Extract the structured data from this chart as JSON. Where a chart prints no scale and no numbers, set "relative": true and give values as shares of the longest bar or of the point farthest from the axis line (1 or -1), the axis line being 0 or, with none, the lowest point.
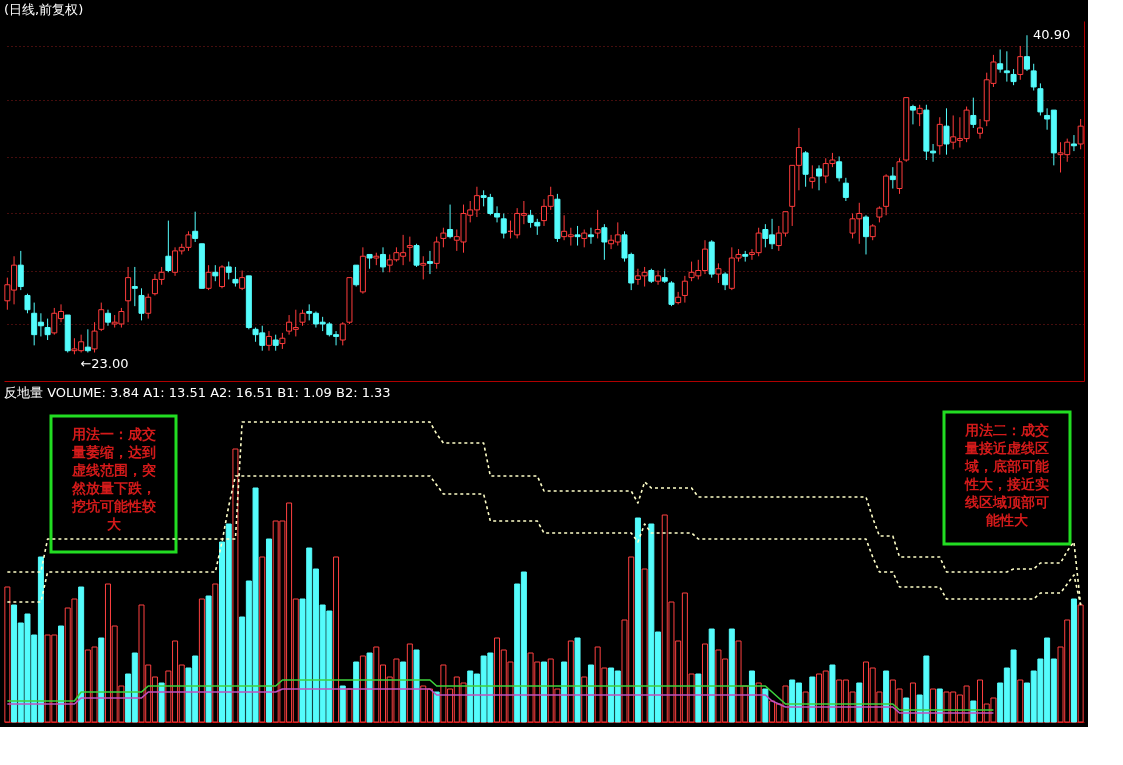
{
  "chart_data": [
    {
      "type": "candlestick",
      "title": "(日线,前复权)",
      "categories": [
        null,
        null,
        null,
        null,
        null,
        null,
        null,
        null,
        null,
        null,
        null,
        null,
        null,
        null,
        null,
        null,
        null,
        null,
        null,
        null,
        null,
        null,
        null,
        null,
        null,
        null,
        null,
        null,
        null,
        null,
        null,
        null,
        null,
        null,
        null,
        null,
        null,
        null,
        null,
        null,
        null,
        null,
        null,
        null,
        null,
        null,
        null,
        null,
        null,
        null,
        null,
        null,
        null,
        null,
        null,
        null,
        null,
        null,
        null,
        null,
        null,
        null,
        null,
        null,
        null,
        null,
        null,
        null,
        null,
        null,
        null,
        null,
        null,
        null,
        null,
        null,
        null,
        null,
        null,
        null,
        null,
        null,
        null,
        null,
        null,
        null,
        null,
        null,
        null,
        null,
        null,
        null,
        null,
        null,
        null,
        null,
        null,
        null,
        null,
        null,
        null,
        null,
        null,
        null,
        null,
        null,
        null,
        null,
        null,
        null,
        null,
        null,
        null,
        null,
        null,
        null,
        null,
        null,
        null,
        null,
        null,
        null,
        null,
        null,
        null,
        null,
        null,
        null,
        null,
        null,
        null,
        null,
        null,
        null,
        null,
        null,
        null,
        null,
        null,
        null,
        null,
        null,
        null,
        null,
        null,
        null,
        null,
        null,
        null,
        null,
        null,
        null,
        null,
        null,
        null,
        null,
        null,
        null,
        null,
        null,
        null
      ],
      "ohlc": [
        [
          26.0,
          27.3,
          25.5,
          26.9
        ],
        [
          26.6,
          28.5,
          25.8,
          28.0
        ],
        [
          28.0,
          28.8,
          26.6,
          26.8
        ],
        [
          26.3,
          26.4,
          25.3,
          25.5
        ],
        [
          25.3,
          25.9,
          23.5,
          24.1
        ],
        [
          24.8,
          25.3,
          24.0,
          24.6
        ],
        [
          24.5,
          25.0,
          23.8,
          24.1
        ],
        [
          24.2,
          25.6,
          24.1,
          25.3
        ],
        [
          25.0,
          25.8,
          24.8,
          25.4
        ],
        [
          25.2,
          25.2,
          23.1,
          23.2
        ],
        [
          23.2,
          23.9,
          23.0,
          23.3
        ],
        [
          23.2,
          24.1,
          23.1,
          23.7
        ],
        [
          23.4,
          24.4,
          23.1,
          23.2
        ],
        [
          23.3,
          24.8,
          23.1,
          24.3
        ],
        [
          24.4,
          25.9,
          24.3,
          25.5
        ],
        [
          25.3,
          25.5,
          24.6,
          24.8
        ],
        [
          24.7,
          25.2,
          24.5,
          24.8
        ],
        [
          24.7,
          25.6,
          24.5,
          25.4
        ],
        [
          26.0,
          27.9,
          24.8,
          27.3
        ],
        [
          26.8,
          27.9,
          25.7,
          26.7
        ],
        [
          26.3,
          26.7,
          24.9,
          25.3
        ],
        [
          25.3,
          26.4,
          25.0,
          26.2
        ],
        [
          26.4,
          27.5,
          26.3,
          27.2
        ],
        [
          27.2,
          27.9,
          26.9,
          27.6
        ],
        [
          28.5,
          30.5,
          27.6,
          27.7
        ],
        [
          27.6,
          29.0,
          27.4,
          28.8
        ],
        [
          28.8,
          29.2,
          28.6,
          29.0
        ],
        [
          29.0,
          29.9,
          28.8,
          29.7
        ],
        [
          29.9,
          31.0,
          29.3,
          29.5
        ],
        [
          29.2,
          29.2,
          26.7,
          26.7
        ],
        [
          26.7,
          28.0,
          26.6,
          27.6
        ],
        [
          27.6,
          28.0,
          27.1,
          27.4
        ],
        [
          26.8,
          28.0,
          26.7,
          27.9
        ],
        [
          27.9,
          28.2,
          27.2,
          27.6
        ],
        [
          27.2,
          27.9,
          26.8,
          27.0
        ],
        [
          26.7,
          27.7,
          26.6,
          27.3
        ],
        [
          27.4,
          27.4,
          24.4,
          24.5
        ],
        [
          24.4,
          24.5,
          23.7,
          24.1
        ],
        [
          24.2,
          24.6,
          23.2,
          23.5
        ],
        [
          23.5,
          24.3,
          23.2,
          24.0
        ],
        [
          23.8,
          24.1,
          23.2,
          23.5
        ],
        [
          23.6,
          24.2,
          23.3,
          23.9
        ],
        [
          24.3,
          25.2,
          24.1,
          24.8
        ],
        [
          24.4,
          25.5,
          24.0,
          24.5
        ],
        [
          24.8,
          25.5,
          24.6,
          25.3
        ],
        [
          25.4,
          25.8,
          24.9,
          25.3
        ],
        [
          25.3,
          25.4,
          24.5,
          24.7
        ],
        [
          24.8,
          25.1,
          24.3,
          24.7
        ],
        [
          24.7,
          24.8,
          24.0,
          24.1
        ],
        [
          24.1,
          24.3,
          23.5,
          24.0
        ],
        [
          23.8,
          24.8,
          23.5,
          24.7
        ],
        [
          24.8,
          27.3,
          24.7,
          27.3
        ],
        [
          28.0,
          28.0,
          26.8,
          26.9
        ],
        [
          26.5,
          29.0,
          26.4,
          28.5
        ],
        [
          28.6,
          28.6,
          27.8,
          28.4
        ],
        [
          28.4,
          28.7,
          28.0,
          28.5
        ],
        [
          28.6,
          29.0,
          27.6,
          27.9
        ],
        [
          28.0,
          28.6,
          27.6,
          28.3
        ],
        [
          28.3,
          29.0,
          28.2,
          28.7
        ],
        [
          28.5,
          29.7,
          28.0,
          28.7
        ],
        [
          29.0,
          29.6,
          28.2,
          29.1
        ],
        [
          29.1,
          29.2,
          27.9,
          28.0
        ],
        [
          28.0,
          28.5,
          27.2,
          28.1
        ],
        [
          28.2,
          28.8,
          27.5,
          28.1
        ],
        [
          28.1,
          29.6,
          27.8,
          29.3
        ],
        [
          29.5,
          30.1,
          29.0,
          29.8
        ],
        [
          30.0,
          31.4,
          29.5,
          29.6
        ],
        [
          29.4,
          30.0,
          28.8,
          29.6
        ],
        [
          29.3,
          31.4,
          28.7,
          30.9
        ],
        [
          30.8,
          31.6,
          30.4,
          31.1
        ],
        [
          31.1,
          32.4,
          30.7,
          31.9
        ],
        [
          31.9,
          32.2,
          31.3,
          31.8
        ],
        [
          31.8,
          32.0,
          30.8,
          30.9
        ],
        [
          30.9,
          31.3,
          30.4,
          30.7
        ],
        [
          30.6,
          30.9,
          29.5,
          29.8
        ],
        [
          29.9,
          30.5,
          29.5,
          29.9
        ],
        [
          29.7,
          31.2,
          29.5,
          30.9
        ],
        [
          30.8,
          31.6,
          30.3,
          30.9
        ],
        [
          30.8,
          31.1,
          30.1,
          30.4
        ],
        [
          30.4,
          30.6,
          29.7,
          30.2
        ],
        [
          30.5,
          31.7,
          30.2,
          31.3
        ],
        [
          31.3,
          32.4,
          31.1,
          31.9
        ],
        [
          31.7,
          32.0,
          29.3,
          29.5
        ],
        [
          29.6,
          30.8,
          29.4,
          29.9
        ],
        [
          29.6,
          30.1,
          29.1,
          29.7
        ],
        [
          29.7,
          30.2,
          29.1,
          29.6
        ],
        [
          29.5,
          30.0,
          29.0,
          29.8
        ],
        [
          29.7,
          30.1,
          29.2,
          29.6
        ],
        [
          29.8,
          31.1,
          29.5,
          30.0
        ],
        [
          30.1,
          30.3,
          28.3,
          29.3
        ],
        [
          29.2,
          29.7,
          28.9,
          29.4
        ],
        [
          29.3,
          30.4,
          29.1,
          29.7
        ],
        [
          29.7,
          29.9,
          28.2,
          28.4
        ],
        [
          28.6,
          28.7,
          26.6,
          27.0
        ],
        [
          27.2,
          27.8,
          26.9,
          27.4
        ],
        [
          27.4,
          27.9,
          26.8,
          27.6
        ],
        [
          27.7,
          27.8,
          27.0,
          27.1
        ],
        [
          27.1,
          27.7,
          26.9,
          27.4
        ],
        [
          27.3,
          27.8,
          27.0,
          27.1
        ],
        [
          27.0,
          27.1,
          25.7,
          25.8
        ],
        [
          25.9,
          26.5,
          25.8,
          26.2
        ],
        [
          26.3,
          27.4,
          25.9,
          27.1
        ],
        [
          27.3,
          28.2,
          27.1,
          27.6
        ],
        [
          27.4,
          28.3,
          27.2,
          27.7
        ],
        [
          27.7,
          29.4,
          27.5,
          28.9
        ],
        [
          29.3,
          29.4,
          27.3,
          27.5
        ],
        [
          27.5,
          28.1,
          27.0,
          27.8
        ],
        [
          27.5,
          27.6,
          26.6,
          26.9
        ],
        [
          26.7,
          29.0,
          26.6,
          28.4
        ],
        [
          28.4,
          28.9,
          28.2,
          28.6
        ],
        [
          28.6,
          28.8,
          28.2,
          28.5
        ],
        [
          28.6,
          28.9,
          28.3,
          28.7
        ],
        [
          28.7,
          30.1,
          28.5,
          29.8
        ],
        [
          30.0,
          30.3,
          29.0,
          29.5
        ],
        [
          29.7,
          30.6,
          28.9,
          29.2
        ],
        [
          29.1,
          30.2,
          28.8,
          29.8
        ],
        [
          29.8,
          31.0,
          29.6,
          31.0
        ],
        [
          31.3,
          33.6,
          30.2,
          33.6
        ],
        [
          33.6,
          35.7,
          32.2,
          34.6
        ],
        [
          34.3,
          34.4,
          32.4,
          33.1
        ],
        [
          32.7,
          33.6,
          32.3,
          32.9
        ],
        [
          33.4,
          33.6,
          32.2,
          33.0
        ],
        [
          33.0,
          34.0,
          32.6,
          33.7
        ],
        [
          33.7,
          34.3,
          33.5,
          33.9
        ],
        [
          33.8,
          34.1,
          32.7,
          32.9
        ],
        [
          32.6,
          32.9,
          31.6,
          31.8
        ],
        [
          29.8,
          30.9,
          29.5,
          30.6
        ],
        [
          30.6,
          31.5,
          29.2,
          30.9
        ],
        [
          30.7,
          30.8,
          28.6,
          29.6
        ],
        [
          29.6,
          30.3,
          29.4,
          30.2
        ],
        [
          30.7,
          31.3,
          30.4,
          31.2
        ],
        [
          31.3,
          33.1,
          30.8,
          33.0
        ],
        [
          33.0,
          33.5,
          32.3,
          32.8
        ],
        [
          32.3,
          34.0,
          32.0,
          33.8
        ],
        [
          33.9,
          37.4,
          33.8,
          37.4
        ],
        [
          36.9,
          37.0,
          35.9,
          36.7
        ],
        [
          36.5,
          37.0,
          35.8,
          36.8
        ],
        [
          36.7,
          37.0,
          33.9,
          34.4
        ],
        [
          34.4,
          34.8,
          33.8,
          34.3
        ],
        [
          34.7,
          36.3,
          34.2,
          35.9
        ],
        [
          35.8,
          36.8,
          34.2,
          34.8
        ],
        [
          34.9,
          36.4,
          34.5,
          35.2
        ],
        [
          35.0,
          36.3,
          34.6,
          35.1
        ],
        [
          35.1,
          36.9,
          34.9,
          36.7
        ],
        [
          36.4,
          37.4,
          35.7,
          35.9
        ],
        [
          35.4,
          36.2,
          35.1,
          35.7
        ],
        [
          36.1,
          38.8,
          35.8,
          38.4
        ],
        [
          38.2,
          39.8,
          38.0,
          39.4
        ],
        [
          39.3,
          40.1,
          38.8,
          39.0
        ],
        [
          38.9,
          40.0,
          38.3,
          38.8
        ],
        [
          38.7,
          39.0,
          38.1,
          38.3
        ],
        [
          38.7,
          40.3,
          38.4,
          39.7
        ],
        [
          39.7,
          40.9,
          38.9,
          39.0
        ],
        [
          38.9,
          39.3,
          37.8,
          38.0
        ],
        [
          37.9,
          38.2,
          36.4,
          36.6
        ],
        [
          36.4,
          36.8,
          35.6,
          36.2
        ],
        [
          36.7,
          36.7,
          33.6,
          34.3
        ],
        [
          34.2,
          34.9,
          33.2,
          34.3
        ],
        [
          34.2,
          35.1,
          33.8,
          34.9
        ],
        [
          34.8,
          35.3,
          34.4,
          34.7
        ],
        [
          34.8,
          36.2,
          34.5,
          35.8
        ]
      ],
      "ylim": [
        21.5,
        41.7
      ],
      "yticks": [
        {
          "value": 24.7,
          "label": null
        },
        {
          "value": 27.7,
          "label": null
        },
        {
          "value": 30.9,
          "label": null
        },
        {
          "value": 34.05,
          "label": null
        },
        {
          "value": 37.25,
          "label": null
        },
        {
          "value": 40.3,
          "label": null
        }
      ],
      "tick_labels": false,
      "grid": "y",
      "annotations": [
        "40.90",
        "←23.00"
      ]
    },
    {
      "type": "bar",
      "title": "反地量 VOLUME: 3.84 A1: 13.51 A2: 16.51 B1: 1.09 B2: 1.33",
      "relative": true,
      "categories": [
        null,
        null,
        null,
        null,
        null,
        null,
        null,
        null,
        null,
        null,
        null,
        null,
        null,
        null,
        null,
        null,
        null,
        null,
        null,
        null,
        null,
        null,
        null,
        null,
        null,
        null,
        null,
        null,
        null,
        null,
        null,
        null,
        null,
        null,
        null,
        null,
        null,
        null,
        null,
        null,
        null,
        null,
        null,
        null,
        null,
        null,
        null,
        null,
        null,
        null,
        null,
        null,
        null,
        null,
        null,
        null,
        null,
        null,
        null,
        null,
        null,
        null,
        null,
        null,
        null,
        null,
        null,
        null,
        null,
        null,
        null,
        null,
        null,
        null,
        null,
        null,
        null,
        null,
        null,
        null,
        null,
        null,
        null,
        null,
        null,
        null,
        null,
        null,
        null,
        null,
        null,
        null,
        null,
        null,
        null,
        null,
        null,
        null,
        null,
        null,
        null,
        null,
        null,
        null,
        null,
        null,
        null,
        null,
        null,
        null,
        null,
        null,
        null,
        null,
        null,
        null,
        null,
        null,
        null,
        null,
        null,
        null,
        null,
        null,
        null,
        null,
        null,
        null,
        null,
        null,
        null,
        null,
        null,
        null,
        null,
        null,
        null,
        null,
        null,
        null,
        null,
        null,
        null,
        null,
        null,
        null,
        null,
        null,
        null,
        null,
        null,
        null,
        null,
        null,
        null,
        null,
        null,
        null,
        null,
        null,
        null
      ],
      "series": [
        {
          "type": "bar",
          "values": [
            0.45,
            0.39,
            0.33,
            0.36,
            0.29,
            0.55,
            0.29,
            0.29,
            0.32,
            0.38,
            0.41,
            0.45,
            0.24,
            0.25,
            0.28,
            0.46,
            0.32,
            0.12,
            0.16,
            0.23,
            0.39,
            0.19,
            0.15,
            0.13,
            0.17,
            0.27,
            0.19,
            0.18,
            0.22,
            0.41,
            0.42,
            0.46,
            0.6,
            0.66,
            0.91,
            0.35,
            0.47,
            0.78,
            0.55,
            0.61,
            0.67,
            0.67,
            0.73,
            0.41,
            0.41,
            0.58,
            0.51,
            0.39,
            0.37,
            0.55,
            0.12,
            0.11,
            0.2,
            0.22,
            0.23,
            0.25,
            0.19,
            0.15,
            0.21,
            0.2,
            0.26,
            0.24,
            0.12,
            0.11,
            0.1,
            0.19,
            0.11,
            0.15,
            0.13,
            0.17,
            0.16,
            0.22,
            0.23,
            0.28,
            0.24,
            0.2,
            0.46,
            0.5,
            0.23,
            0.2,
            0.2,
            0.21,
            0.11,
            0.2,
            0.27,
            0.28,
            0.15,
            0.19,
            0.25,
            0.18,
            0.18,
            0.17,
            0.34,
            0.55,
            0.68,
            0.51,
            0.66,
            0.3,
            0.69,
            0.4,
            0.27,
            0.43,
            0.16,
            0.16,
            0.26,
            0.31,
            0.24,
            0.21,
            0.31,
            0.27,
            0.12,
            0.17,
            0.13,
            0.11,
            0.07,
            0.06,
            0.12,
            0.14,
            0.13,
            0.1,
            0.15,
            0.16,
            0.17,
            0.19,
            0.14,
            0.14,
            0.1,
            0.13,
            0.2,
            0.18,
            0.1,
            0.17,
            0.14,
            0.11,
            0.08,
            0.13,
            0.09,
            0.22,
            0.11,
            0.11,
            0.1,
            0.1,
            0.09,
            0.12,
            0.07,
            0.14,
            0.06,
            0.08,
            0.13,
            0.18,
            0.24,
            0.14,
            0.13,
            0.17,
            0.21,
            0.28,
            0.21,
            0.25,
            0.34,
            0.41,
            0.39
          ],
          "colors": [
            "#ff4040",
            "#54fcfc",
            "#54fcfc",
            "#54fcfc",
            "#54fcfc",
            "#54fcfc",
            "#ff4040",
            "#ff4040",
            "#54fcfc",
            "#ff4040",
            "#ff4040",
            "#54fcfc",
            "#ff4040",
            "#ff4040",
            "#54fcfc",
            "#ff4040",
            "#ff4040",
            "#ff4040",
            "#54fcfc",
            "#54fcfc",
            "#ff4040",
            "#ff4040",
            "#ff4040",
            "#54fcfc",
            "#ff4040",
            "#ff4040",
            "#ff4040",
            "#54fcfc",
            "#54fcfc",
            "#ff4040",
            "#54fcfc",
            "#ff4040",
            "#54fcfc",
            "#54fcfc",
            "#ff4040",
            "#54fcfc",
            "#54fcfc",
            "#54fcfc",
            "#ff4040",
            "#54fcfc",
            "#ff4040",
            "#ff4040",
            "#ff4040",
            "#ff4040",
            "#54fcfc",
            "#54fcfc",
            "#54fcfc",
            "#54fcfc",
            "#54fcfc",
            "#ff4040",
            "#54fcfc",
            "#ff4040",
            "#54fcfc",
            "#ff4040",
            "#54fcfc",
            "#ff4040",
            "#ff4040",
            "#ff4040",
            "#ff4040",
            "#54fcfc",
            "#ff4040",
            "#54fcfc",
            "#ff4040",
            "#ff4040",
            "#54fcfc",
            "#ff4040",
            "#ff4040",
            "#ff4040",
            "#ff4040",
            "#54fcfc",
            "#54fcfc",
            "#54fcfc",
            "#54fcfc",
            "#ff4040",
            "#ff4040",
            "#ff4040",
            "#54fcfc",
            "#54fcfc",
            "#ff4040",
            "#ff4040",
            "#54fcfc",
            "#ff4040",
            "#ff4040",
            "#54fcfc",
            "#ff4040",
            "#54fcfc",
            "#ff4040",
            "#54fcfc",
            "#ff4040",
            "#ff4040",
            "#54fcfc",
            "#54fcfc",
            "#ff4040",
            "#ff4040",
            "#54fcfc",
            "#ff4040",
            "#54fcfc",
            "#54fcfc",
            "#ff4040",
            "#ff4040",
            "#ff4040",
            "#ff4040",
            "#ff4040",
            "#54fcfc",
            "#ff4040",
            "#54fcfc",
            "#ff4040",
            "#ff4040",
            "#54fcfc",
            "#ff4040",
            "#ff4040",
            "#54fcfc",
            "#ff4040",
            "#54fcfc",
            "#ff4040",
            "#ff4040",
            "#ff4040",
            "#54fcfc",
            "#54fcfc",
            "#ff4040",
            "#54fcfc",
            "#ff4040",
            "#ff4040",
            "#54fcfc",
            "#ff4040",
            "#ff4040",
            "#ff4040",
            "#54fcfc",
            "#ff4040",
            "#ff4040",
            "#ff4040",
            "#54fcfc",
            "#ff4040",
            "#ff4040",
            "#54fcfc",
            "#ff4040",
            "#54fcfc",
            "#54fcfc",
            "#ff4040",
            "#54fcfc",
            "#ff4040",
            "#ff4040",
            "#ff4040",
            "#ff4040",
            "#54fcfc",
            "#ff4040",
            "#ff4040",
            "#ff4040",
            "#54fcfc",
            "#54fcfc",
            "#54fcfc",
            "#ff4040",
            "#54fcfc",
            "#54fcfc",
            "#54fcfc",
            "#54fcfc",
            "#54fcfc",
            "#ff4040",
            "#ff4040",
            "#54fcfc",
            "#ff4040"
          ]
        },
        {
          "type": "line",
          "color": "#ffffc8",
          "line_style": "dashed",
          "values": [
            0.5,
            0.5,
            0.5,
            0.5,
            0.5,
            0.5,
            0.61,
            0.61,
            0.61,
            0.61,
            0.61,
            0.61,
            0.61,
            0.61,
            0.61,
            0.61,
            0.61,
            0.61,
            0.61,
            0.61,
            0.61,
            0.61,
            0.61,
            0.61,
            0.61,
            0.61,
            0.61,
            0.61,
            0.61,
            0.61,
            0.61,
            0.61,
            0.61,
            0.61,
            0.61,
            1.0,
            1.0,
            1.0,
            1.0,
            1.0,
            1.0,
            1.0,
            1.0,
            1.0,
            1.0,
            1.0,
            1.0,
            1.0,
            1.0,
            1.0,
            1.0,
            1.0,
            1.0,
            1.0,
            1.0,
            1.0,
            1.0,
            1.0,
            1.0,
            1.0,
            1.0,
            1.0,
            1.0,
            1.0,
            0.96,
            0.93,
            0.93,
            0.93,
            0.93,
            0.93,
            0.93,
            0.93,
            0.82,
            0.82,
            0.82,
            0.82,
            0.82,
            0.82,
            0.82,
            0.82,
            0.77,
            0.77,
            0.77,
            0.77,
            0.77,
            0.77,
            0.77,
            0.77,
            0.77,
            0.77,
            0.77,
            0.77,
            0.77,
            0.77,
            0.73,
            0.8,
            0.78,
            0.78,
            0.78,
            0.78,
            0.78,
            0.78,
            0.78,
            0.75,
            0.75,
            0.75,
            0.75,
            0.75,
            0.75,
            0.75,
            0.75,
            0.75,
            0.75,
            0.75,
            0.75,
            0.75,
            0.75,
            0.75,
            0.75,
            0.75,
            0.75,
            0.75,
            0.75,
            0.75,
            0.75,
            0.75,
            0.75,
            0.75,
            0.75,
            0.68,
            0.62,
            0.62,
            0.62,
            0.55,
            0.55,
            0.55,
            0.55,
            0.55,
            0.55,
            0.55,
            0.5,
            0.5,
            0.5,
            0.5,
            0.5,
            0.5,
            0.5,
            0.5,
            0.5,
            0.5,
            0.51,
            0.51,
            0.51,
            0.51,
            0.53,
            0.53,
            0.53,
            0.53,
            0.57,
            0.6,
            0.39
          ]
        },
        {
          "type": "line",
          "color": "#ffffc8",
          "line_style": "dashed",
          "values": [
            0.4,
            0.4,
            0.4,
            0.4,
            0.4,
            0.4,
            0.5,
            0.5,
            0.5,
            0.5,
            0.5,
            0.5,
            0.5,
            0.5,
            0.5,
            0.5,
            0.5,
            0.5,
            0.5,
            0.5,
            0.5,
            0.5,
            0.5,
            0.5,
            0.5,
            0.5,
            0.5,
            0.5,
            0.5,
            0.5,
            0.5,
            0.5,
            0.6,
            0.72,
            0.82,
            0.82,
            0.82,
            0.82,
            0.82,
            0.82,
            0.82,
            0.82,
            0.82,
            0.82,
            0.82,
            0.82,
            0.82,
            0.82,
            0.82,
            0.82,
            0.82,
            0.82,
            0.82,
            0.82,
            0.82,
            0.82,
            0.82,
            0.82,
            0.82,
            0.82,
            0.82,
            0.82,
            0.82,
            0.82,
            0.79,
            0.76,
            0.76,
            0.76,
            0.76,
            0.76,
            0.76,
            0.76,
            0.67,
            0.67,
            0.67,
            0.67,
            0.67,
            0.67,
            0.67,
            0.67,
            0.63,
            0.63,
            0.63,
            0.63,
            0.63,
            0.63,
            0.63,
            0.63,
            0.63,
            0.63,
            0.63,
            0.63,
            0.63,
            0.63,
            0.6,
            0.66,
            0.63,
            0.63,
            0.63,
            0.63,
            0.63,
            0.63,
            0.63,
            0.61,
            0.61,
            0.61,
            0.61,
            0.61,
            0.61,
            0.61,
            0.61,
            0.61,
            0.61,
            0.61,
            0.61,
            0.61,
            0.61,
            0.61,
            0.61,
            0.61,
            0.61,
            0.61,
            0.61,
            0.61,
            0.61,
            0.61,
            0.61,
            0.61,
            0.61,
            0.55,
            0.5,
            0.5,
            0.5,
            0.45,
            0.45,
            0.45,
            0.45,
            0.45,
            0.45,
            0.45,
            0.41,
            0.41,
            0.41,
            0.41,
            0.41,
            0.41,
            0.41,
            0.41,
            0.41,
            0.41,
            0.41,
            0.41,
            0.41,
            0.41,
            0.43,
            0.43,
            0.43,
            0.43,
            0.46,
            0.49,
            0.39
          ]
        },
        {
          "type": "line",
          "color": "#3cd23c",
          "line_style": "solid",
          "values": [
            0.07,
            0.07,
            0.07,
            0.07,
            0.07,
            0.07,
            0.07,
            0.07,
            0.07,
            0.07,
            0.07,
            0.1,
            0.1,
            0.1,
            0.1,
            0.1,
            0.1,
            0.1,
            0.1,
            0.1,
            0.1,
            0.12,
            0.12,
            0.12,
            0.12,
            0.12,
            0.12,
            0.12,
            0.12,
            0.12,
            0.12,
            0.12,
            0.12,
            0.12,
            0.12,
            0.12,
            0.12,
            0.12,
            0.12,
            0.12,
            0.12,
            0.14,
            0.14,
            0.14,
            0.14,
            0.14,
            0.14,
            0.14,
            0.14,
            0.14,
            0.14,
            0.14,
            0.14,
            0.14,
            0.14,
            0.14,
            0.14,
            0.14,
            0.14,
            0.14,
            0.14,
            0.14,
            0.14,
            0.14,
            0.12,
            0.12,
            0.12,
            0.12,
            0.12,
            0.12,
            0.12,
            0.12,
            0.12,
            0.12,
            0.12,
            0.12,
            0.12,
            0.12,
            0.12,
            0.12,
            0.12,
            0.12,
            0.12,
            0.12,
            0.12,
            0.12,
            0.12,
            0.12,
            0.12,
            0.12,
            0.12,
            0.12,
            0.12,
            0.12,
            0.12,
            0.12,
            0.12,
            0.12,
            0.12,
            0.12,
            0.12,
            0.12,
            0.12,
            0.12,
            0.12,
            0.12,
            0.12,
            0.12,
            0.12,
            0.12,
            0.12,
            0.12,
            0.12,
            0.12,
            0.1,
            0.08,
            0.06,
            0.06,
            0.06,
            0.06,
            0.06,
            0.06,
            0.06,
            0.06,
            0.06,
            0.06,
            0.06,
            0.06,
            0.06,
            0.06,
            0.06,
            0.06,
            0.06,
            0.04,
            0.04,
            0.04,
            0.04,
            0.04,
            0.04,
            0.04,
            0.04,
            0.04,
            0.04,
            0.04,
            0.04,
            0.04,
            0.04,
            0.04,
            null,
            null,
            null,
            null,
            null,
            null,
            null,
            null,
            null,
            null,
            null,
            null,
            null
          ]
        },
        {
          "type": "line",
          "color": "#c050c0",
          "line_style": "solid",
          "values": [
            0.06,
            0.06,
            0.06,
            0.06,
            0.06,
            0.06,
            0.06,
            0.06,
            0.06,
            0.06,
            0.06,
            0.08,
            0.08,
            0.08,
            0.08,
            0.08,
            0.08,
            0.08,
            0.08,
            0.08,
            0.08,
            0.1,
            0.1,
            0.1,
            0.1,
            0.1,
            0.1,
            0.1,
            0.1,
            0.1,
            0.1,
            0.1,
            0.1,
            0.1,
            0.1,
            0.1,
            0.1,
            0.1,
            0.1,
            0.1,
            0.1,
            0.11,
            0.11,
            0.11,
            0.11,
            0.11,
            0.11,
            0.11,
            0.11,
            0.11,
            0.11,
            0.11,
            0.11,
            0.11,
            0.11,
            0.11,
            0.11,
            0.11,
            0.11,
            0.11,
            0.11,
            0.11,
            0.11,
            0.11,
            0.09,
            0.09,
            0.09,
            0.09,
            0.09,
            0.09,
            0.09,
            0.09,
            0.09,
            0.09,
            0.09,
            0.09,
            0.09,
            0.09,
            0.09,
            0.09,
            0.09,
            0.09,
            0.09,
            0.09,
            0.09,
            0.09,
            0.09,
            0.09,
            0.09,
            0.09,
            0.09,
            0.09,
            0.09,
            0.09,
            0.09,
            0.09,
            0.09,
            0.09,
            0.09,
            0.09,
            0.09,
            0.09,
            0.09,
            0.09,
            0.09,
            0.09,
            0.09,
            0.09,
            0.09,
            0.09,
            0.09,
            0.09,
            0.09,
            0.09,
            0.07,
            0.06,
            0.05,
            0.05,
            0.05,
            0.05,
            0.05,
            0.05,
            0.05,
            0.05,
            0.05,
            0.05,
            0.05,
            0.05,
            0.05,
            0.05,
            0.05,
            0.05,
            0.05,
            0.03,
            0.03,
            0.03,
            0.03,
            0.03,
            0.03,
            0.03,
            0.03,
            0.03,
            0.03,
            0.03,
            0.03,
            0.03,
            0.03,
            0.03,
            null,
            null,
            null,
            null,
            null,
            null,
            null,
            null,
            null,
            null,
            null,
            null,
            null
          ]
        }
      ],
      "annotations": [
        "用法一：成交量萎缩，达到虚线范围，突然放量下跌，挖坑可能性较大",
        "用法二：成交量接近虚线区域，底部可能性大，接近实线区域顶部可能性大"
      ]
    }
  ]
}
